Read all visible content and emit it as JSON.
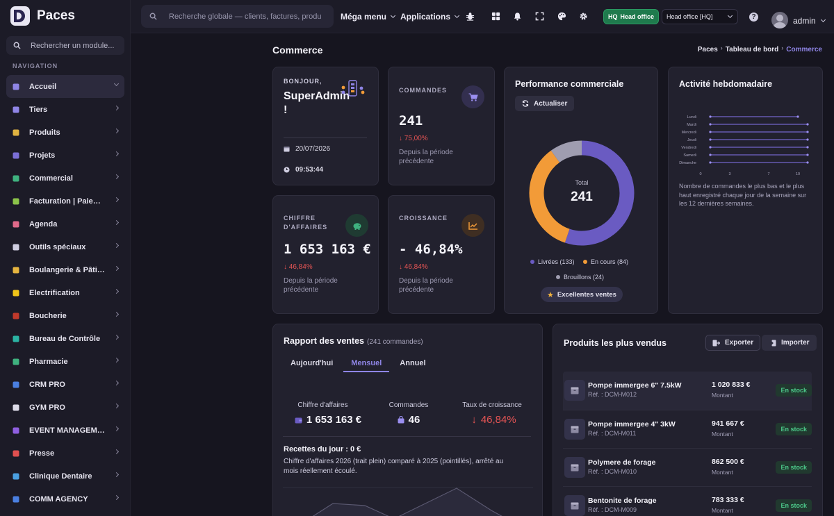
{
  "brand": {
    "name": "Paces"
  },
  "sidebar": {
    "search_placeholder": "Rechercher un module...",
    "heading": "NAVIGATION",
    "items": [
      {
        "label": "Accueil",
        "icon": "home-icon",
        "color": "#8f85e6",
        "active": true
      },
      {
        "label": "Tiers",
        "icon": "building-icon",
        "color": "#8f85e6"
      },
      {
        "label": "Produits",
        "icon": "cube-icon",
        "color": "#e0b341"
      },
      {
        "label": "Projets",
        "icon": "diagram-icon",
        "color": "#7b6fd6"
      },
      {
        "label": "Commercial",
        "icon": "briefcase-icon",
        "color": "#3fb27f"
      },
      {
        "label": "Facturation | Paiement",
        "icon": "invoice-icon",
        "color": "#8bc34a"
      },
      {
        "label": "Agenda",
        "icon": "calendar-icon",
        "color": "#e06a8a"
      },
      {
        "label": "Outils spéciaux",
        "icon": "tools-icon",
        "color": "#cfcde0"
      },
      {
        "label": "Boulangerie & Pâtisserie",
        "icon": "bread-icon",
        "color": "#e5b43f"
      },
      {
        "label": "Electrification",
        "icon": "bolt-icon",
        "color": "#f0c419"
      },
      {
        "label": "Boucherie",
        "icon": "meat-icon",
        "color": "#c0392b"
      },
      {
        "label": "Bureau de Contrôle",
        "icon": "shield-check-icon",
        "color": "#2bb3a3"
      },
      {
        "label": "Pharmacie",
        "icon": "cross-icon",
        "color": "#3fb27f"
      },
      {
        "label": "CRM PRO",
        "icon": "funnel-icon",
        "color": "#4a7fe0"
      },
      {
        "label": "GYM PRO",
        "icon": "dumbbell-icon",
        "color": "#dddbe8"
      },
      {
        "label": "EVENT MANAGEMENT",
        "icon": "ticket-icon",
        "color": "#8f5fe0"
      },
      {
        "label": "Presse",
        "icon": "newspaper-icon",
        "color": "#e05050"
      },
      {
        "label": "Clinique Dentaire",
        "icon": "tooth-icon",
        "color": "#4a9fe0"
      },
      {
        "label": "COMM AGENCY",
        "icon": "megaphone-icon",
        "color": "#4a7fe0"
      }
    ]
  },
  "topbar": {
    "search_placeholder": "Recherche globale — clients, factures, produits…",
    "mega_menu": "Méga menu",
    "applications": "Applications",
    "icons": [
      "bug-icon",
      "grid-icon",
      "bell-icon",
      "fullscreen-icon",
      "palette-icon",
      "gear-icon"
    ],
    "hq_tag": "HQ",
    "hq_label": "Head office",
    "office_select": "Head office [HQ]",
    "user": "admin"
  },
  "page": {
    "title": "Commerce",
    "breadcrumb": [
      "Paces",
      "Tableau de bord",
      "Commerce"
    ]
  },
  "welcome": {
    "greeting": "BONJOUR,",
    "name": "SuperAdmin !",
    "date": "20/07/2026",
    "time": "09:53:44"
  },
  "kpis": {
    "commandes": {
      "label": "COMMANDES",
      "value": "241",
      "delta": "75,00%",
      "sub": "Depuis la période précédente",
      "accent": "#9b8ff0"
    },
    "ca": {
      "label": "CHIFFRE D'AFFAIRES",
      "value": "1 653 163 €",
      "delta": "46,84%",
      "sub": "Depuis la période précédente",
      "accent": "#3fb27f"
    },
    "croissance": {
      "label": "CROISSANCE",
      "value": "- 46,84%",
      "delta": "46,84%",
      "sub": "Depuis la période précédente",
      "accent": "#f29b38"
    }
  },
  "performance": {
    "title": "Performance commerciale",
    "refresh": "Actualiser",
    "total_label": "Total",
    "total": "241",
    "legend": [
      {
        "label": "Livrées (133)",
        "value": 133,
        "color": "#6a5bc2"
      },
      {
        "label": "En cours (84)",
        "value": 84,
        "color": "#f29b38"
      },
      {
        "label": "Brouillons (24)",
        "value": 24,
        "color": "#9f9db0"
      }
    ],
    "badge": "Excellentes ventes"
  },
  "weekly": {
    "title": "Activité hebdomadaire",
    "days": [
      "Lundi",
      "Mardi",
      "Mercredi",
      "Jeudi",
      "Vendredi",
      "Samedi",
      "Dimanche"
    ],
    "ticks": [
      "0",
      "3",
      "7",
      "10"
    ],
    "low": [
      1,
      1,
      1,
      1,
      1,
      1,
      1
    ],
    "high": [
      10,
      11,
      11,
      11,
      11,
      11,
      11
    ],
    "description": "Nombre de commandes le plus bas et le plus haut enregistré chaque jour de la semaine sur les 12 dernières semaines."
  },
  "report": {
    "title": "Rapport des ventes",
    "count": "(241 commandes)",
    "tabs": [
      "Aujourd'hui",
      "Mensuel",
      "Annuel"
    ],
    "active_tab": 1,
    "stats": [
      {
        "label": "Chiffre d'affaires",
        "value": "1 653 163 €"
      },
      {
        "label": "Commandes",
        "value": "46"
      },
      {
        "label": "Taux de croissance",
        "value": "46,84%"
      }
    ],
    "recettes": "Recettes du jour : 0 €",
    "note": "Chiffre d'affaires 2026 (trait plein) comparé à 2025 (pointillés), arrêté au mois réellement écoulé."
  },
  "top_products": {
    "title": "Produits les plus vendus",
    "export": "Exporter",
    "import": "Importer",
    "amount_label": "Montant",
    "items": [
      {
        "name": "Pompe immergee 6\" 7.5kW",
        "ref": "Réf. : DCM-M012",
        "amount": "1 020 833 €",
        "status": "En stock"
      },
      {
        "name": "Pompe immergee 4\" 3kW",
        "ref": "Réf. : DCM-M011",
        "amount": "941 667 €",
        "status": "En stock"
      },
      {
        "name": "Polymere de forage",
        "ref": "Réf. : DCM-M010",
        "amount": "862 500 €",
        "status": "En stock"
      },
      {
        "name": "Bentonite de forage",
        "ref": "Réf. : DCM-M009",
        "amount": "783 333 €",
        "status": "En stock"
      }
    ]
  }
}
